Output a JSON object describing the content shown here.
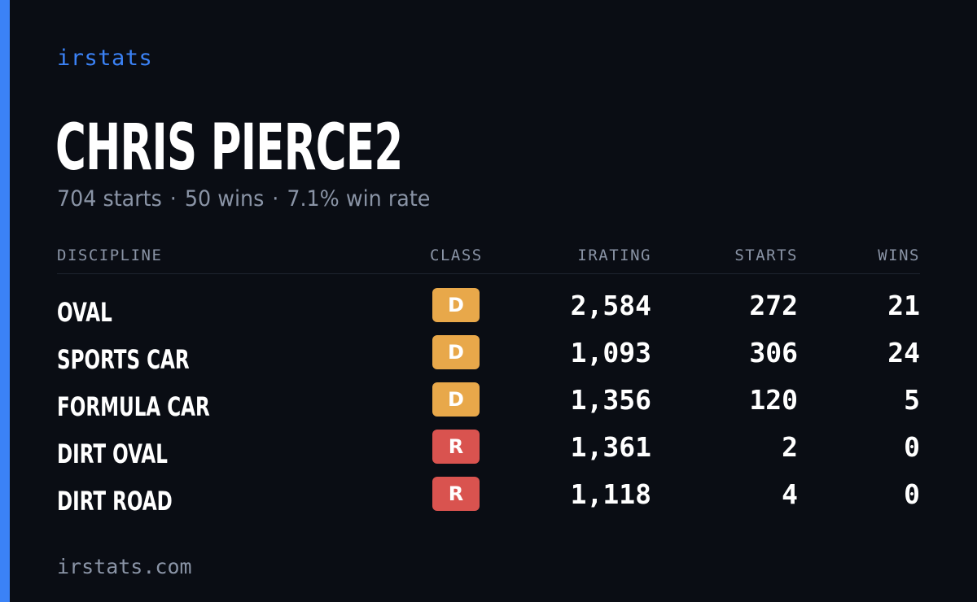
{
  "brand": "irstats",
  "driver": {
    "name": "CHRIS PIERCE2",
    "starts_text": "704 starts",
    "wins_text": "50 wins",
    "win_rate_text": "7.1% win rate",
    "separator": "·"
  },
  "table": {
    "headers": {
      "discipline": "DISCIPLINE",
      "class": "CLASS",
      "irating": "IRATING",
      "starts": "STARTS",
      "wins": "WINS"
    },
    "rows": [
      {
        "discipline": "OVAL",
        "class": "D",
        "class_color": "#e8a84a",
        "irating": "2,584",
        "starts": "272",
        "wins": "21"
      },
      {
        "discipline": "SPORTS CAR",
        "class": "D",
        "class_color": "#e8a84a",
        "irating": "1,093",
        "starts": "306",
        "wins": "24"
      },
      {
        "discipline": "FORMULA CAR",
        "class": "D",
        "class_color": "#e8a84a",
        "irating": "1,356",
        "starts": "120",
        "wins": "5"
      },
      {
        "discipline": "DIRT OVAL",
        "class": "R",
        "class_color": "#d9534f",
        "irating": "1,361",
        "starts": "2",
        "wins": "0"
      },
      {
        "discipline": "DIRT ROAD",
        "class": "R",
        "class_color": "#d9534f",
        "irating": "1,118",
        "starts": "4",
        "wins": "0"
      }
    ]
  },
  "footer": "irstats.com",
  "colors": {
    "accent": "#3b82f6",
    "background": "#0a0d14",
    "muted": "#8a94a6"
  }
}
